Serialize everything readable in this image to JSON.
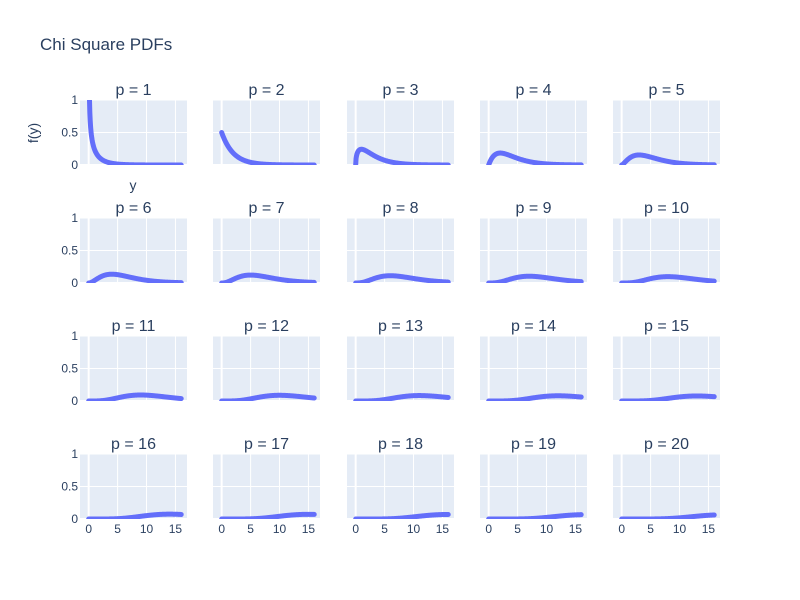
{
  "chart_data": {
    "type": "line",
    "title": "Chi Square PDFs",
    "ylabel": "f(y)",
    "xlabel": "y",
    "xlim": [
      -1.5,
      17
    ],
    "ylim": [
      0,
      1
    ],
    "x_ticks": [
      0,
      5,
      10,
      15
    ],
    "y_ticks": [
      0,
      0.5,
      1
    ],
    "x_tick_labels": [
      "0",
      "5",
      "10",
      "15"
    ],
    "y_tick_labels": [
      "0",
      "0.5",
      "1"
    ],
    "x_range_plotted": [
      0,
      16
    ],
    "line_color": "#636efa",
    "plot_bg": "#e5ecf6",
    "grid": true,
    "subplot_titles": [
      "p = 1",
      "p = 2",
      "p = 3",
      "p = 4",
      "p = 5",
      "p = 6",
      "p = 7",
      "p = 8",
      "p = 9",
      "p = 10",
      "p = 11",
      "p = 12",
      "p = 13",
      "p = 14",
      "p = 15",
      "p = 16",
      "p = 17",
      "p = 18",
      "p = 19",
      "p = 20"
    ],
    "degrees_of_freedom": [
      1,
      2,
      3,
      4,
      5,
      6,
      7,
      8,
      9,
      10,
      11,
      12,
      13,
      14,
      15,
      16,
      17,
      18,
      19,
      20
    ],
    "series": [
      {
        "name": "p = 1",
        "peak_y": 1.0,
        "peak_x": 0.05
      },
      {
        "name": "p = 2",
        "peak_y": 0.5,
        "peak_x": 0.0
      },
      {
        "name": "p = 3",
        "peak_y": 0.242,
        "peak_x": 1.0
      },
      {
        "name": "p = 4",
        "peak_y": 0.184,
        "peak_x": 2.0
      },
      {
        "name": "p = 5",
        "peak_y": 0.154,
        "peak_x": 3.0
      },
      {
        "name": "p = 6",
        "peak_y": 0.135,
        "peak_x": 4.0
      },
      {
        "name": "p = 7",
        "peak_y": 0.122,
        "peak_x": 5.0
      },
      {
        "name": "p = 8",
        "peak_y": 0.112,
        "peak_x": 6.0
      },
      {
        "name": "p = 9",
        "peak_y": 0.104,
        "peak_x": 7.0
      },
      {
        "name": "p = 10",
        "peak_y": 0.098,
        "peak_x": 8.0
      },
      {
        "name": "p = 11",
        "peak_y": 0.093,
        "peak_x": 9.0
      },
      {
        "name": "p = 12",
        "peak_y": 0.088,
        "peak_x": 10.0
      },
      {
        "name": "p = 13",
        "peak_y": 0.084,
        "peak_x": 11.0
      },
      {
        "name": "p = 14",
        "peak_y": 0.081,
        "peak_x": 12.0
      },
      {
        "name": "p = 15",
        "peak_y": 0.078,
        "peak_x": 13.0
      },
      {
        "name": "p = 16",
        "peak_y": 0.075,
        "peak_x": 14.0
      },
      {
        "name": "p = 17",
        "peak_y": 0.073,
        "peak_x": 15.0
      },
      {
        "name": "p = 18",
        "peak_y": 0.071,
        "peak_x": 16.0
      },
      {
        "name": "p = 19",
        "peak_y": 0.069,
        "peak_x": 16.0
      },
      {
        "name": "p = 20",
        "peak_y": 0.067,
        "peak_x": 16.0
      }
    ]
  }
}
